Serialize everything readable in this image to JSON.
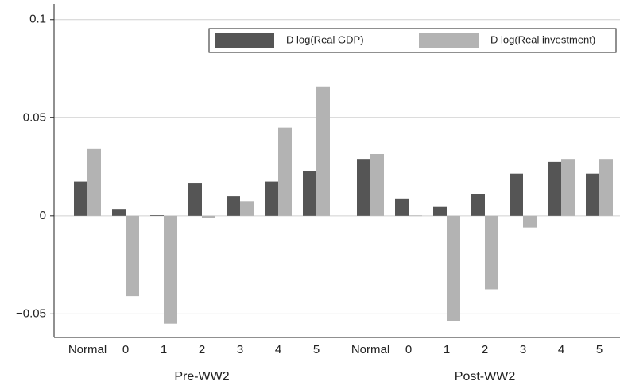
{
  "chart_data": {
    "type": "bar",
    "categories": [
      "Normal",
      "0",
      "1",
      "2",
      "3",
      "4",
      "5",
      "Normal",
      "0",
      "1",
      "2",
      "3",
      "4",
      "5"
    ],
    "groups": [
      "Pre-WW2",
      "Post-WW2"
    ],
    "series": [
      {
        "name": "D log(Real GDP)",
        "color": "#555555",
        "values": [
          0.0175,
          0.0035,
          0.0003,
          0.0165,
          0.01,
          0.0175,
          0.023,
          0.029,
          0.0085,
          0.0045,
          0.011,
          0.0215,
          0.0275,
          0.0215
        ]
      },
      {
        "name": "D log(Real investment)",
        "color": "#b3b3b3",
        "values": [
          0.034,
          -0.041,
          -0.055,
          -0.001,
          0.0075,
          0.045,
          0.066,
          0.0315,
          0.0002,
          -0.0535,
          -0.0375,
          -0.006,
          0.029,
          0.029
        ]
      }
    ],
    "ylim": [
      -0.062,
      0.108
    ],
    "yticks": [
      {
        "value": -0.05,
        "label": "−0.05"
      },
      0,
      0.05,
      0.1
    ],
    "grid": true
  }
}
